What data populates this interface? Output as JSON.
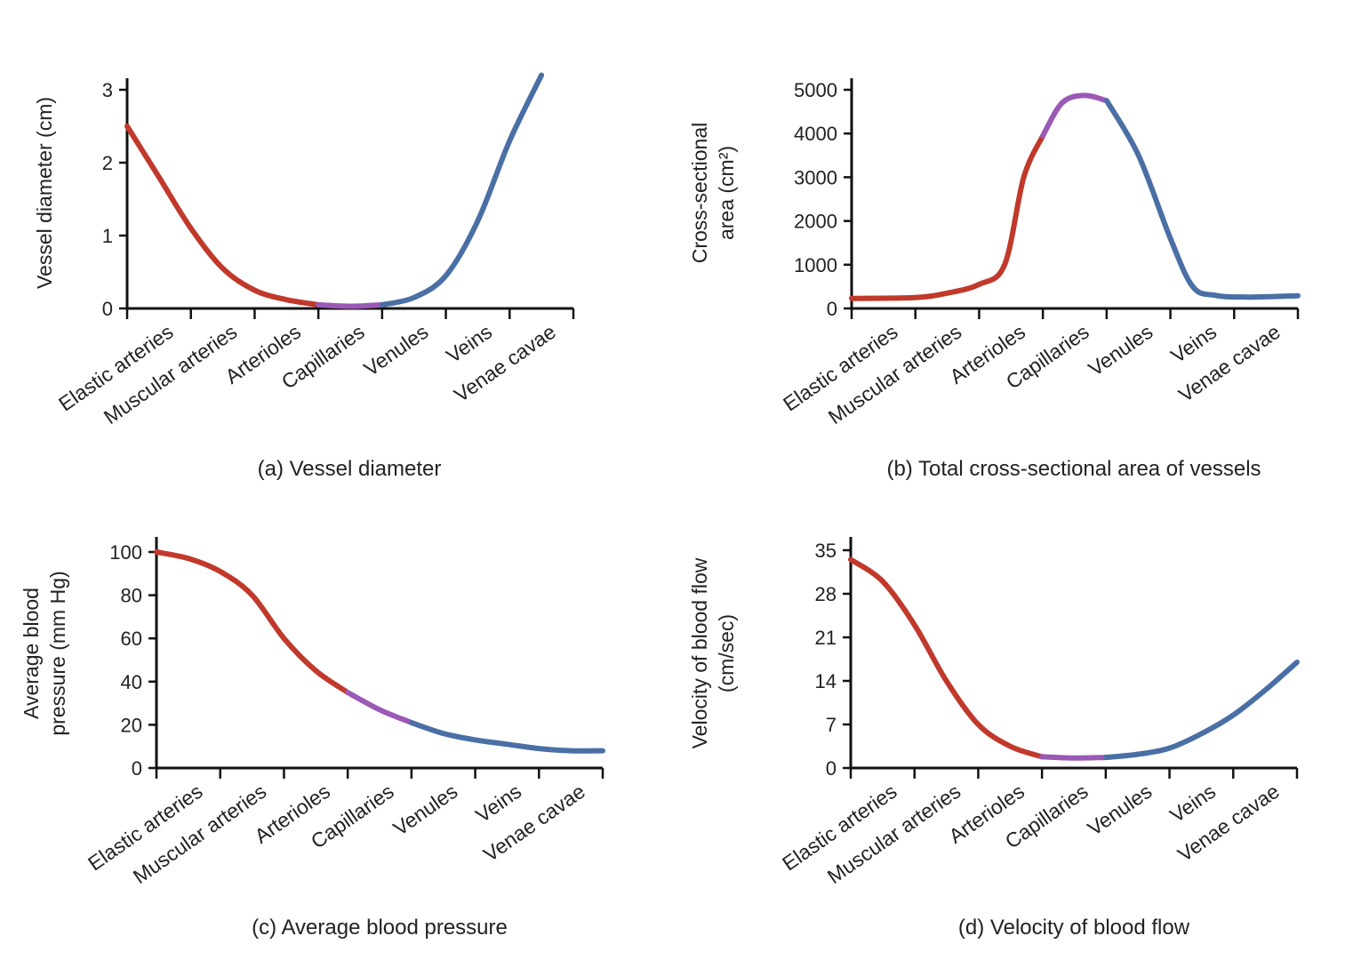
{
  "colors": {
    "artery": "#c0392b",
    "capillary": "#9b59b6",
    "vein": "#4a6fa5",
    "axis": "#111111"
  },
  "chart_data": [
    {
      "id": "a",
      "type": "line",
      "caption": "(a) Vessel diameter",
      "ylabel": [
        "Vessel diameter (cm)"
      ],
      "ylim": [
        0,
        3.2
      ],
      "yticks": [
        0,
        1,
        2,
        3
      ],
      "categories": [
        "Elastic arteries",
        "Muscular arteries",
        "Arterioles",
        "Capillaries",
        "Venules",
        "Veins",
        "Venae cavae"
      ],
      "grid": false,
      "series": [
        {
          "segment": "artery",
          "points": [
            [
              0,
              2.5
            ],
            [
              0.5,
              1.8
            ],
            [
              1,
              1.1
            ],
            [
              1.5,
              0.55
            ],
            [
              2,
              0.25
            ],
            [
              2.5,
              0.12
            ],
            [
              3,
              0.05
            ]
          ]
        },
        {
          "segment": "capillary",
          "points": [
            [
              3,
              0.05
            ],
            [
              3.5,
              0.03
            ],
            [
              4,
              0.05
            ]
          ]
        },
        {
          "segment": "vein",
          "points": [
            [
              4,
              0.05
            ],
            [
              4.5,
              0.15
            ],
            [
              5,
              0.45
            ],
            [
              5.5,
              1.2
            ],
            [
              6,
              2.3
            ],
            [
              6.5,
              3.2
            ]
          ]
        }
      ]
    },
    {
      "id": "b",
      "type": "line",
      "caption": "(b) Total cross-sectional area of vessels",
      "ylabel": [
        "Cross-sectional",
        "area (cm²)"
      ],
      "ylim": [
        0,
        5200
      ],
      "yticks": [
        0,
        1000,
        2000,
        3000,
        4000,
        5000
      ],
      "categories": [
        "Elastic arteries",
        "Muscular arteries",
        "Arterioles",
        "Capillaries",
        "Venules",
        "Veins",
        "Venae cavae"
      ],
      "grid": false,
      "series": [
        {
          "segment": "artery",
          "points": [
            [
              0,
              230
            ],
            [
              1,
              250
            ],
            [
              1.5,
              350
            ],
            [
              2,
              550
            ],
            [
              2.4,
              1000
            ],
            [
              2.7,
              3000
            ],
            [
              3,
              3950
            ]
          ]
        },
        {
          "segment": "capillary",
          "points": [
            [
              3,
              3950
            ],
            [
              3.3,
              4700
            ],
            [
              3.65,
              4870
            ],
            [
              4,
              4750
            ]
          ]
        },
        {
          "segment": "vein",
          "points": [
            [
              4,
              4750
            ],
            [
              4.5,
              3500
            ],
            [
              5,
              1600
            ],
            [
              5.35,
              500
            ],
            [
              5.7,
              300
            ],
            [
              6.2,
              260
            ],
            [
              7,
              290
            ]
          ]
        }
      ]
    },
    {
      "id": "c",
      "type": "line",
      "caption": "(c) Average blood pressure",
      "ylabel": [
        "Average blood",
        "pressure (mm Hg)"
      ],
      "ylim": [
        0,
        107
      ],
      "yticks": [
        0,
        20,
        40,
        60,
        80,
        100
      ],
      "categories": [
        "Elastic arteries",
        "Muscular arteries",
        "Arterioles",
        "Capillaries",
        "Venules",
        "Veins",
        "Venae cavae"
      ],
      "grid": false,
      "series": [
        {
          "segment": "artery",
          "points": [
            [
              0,
              100
            ],
            [
              0.5,
              97
            ],
            [
              1,
              91
            ],
            [
              1.5,
              80
            ],
            [
              2,
              60
            ],
            [
              2.5,
              45
            ],
            [
              3,
              35
            ]
          ]
        },
        {
          "segment": "capillary",
          "points": [
            [
              3,
              35
            ],
            [
              3.5,
              27
            ],
            [
              4,
              21
            ]
          ]
        },
        {
          "segment": "vein",
          "points": [
            [
              4,
              21
            ],
            [
              4.5,
              16
            ],
            [
              5,
              13
            ],
            [
              5.5,
              11
            ],
            [
              6,
              9
            ],
            [
              6.5,
              8
            ],
            [
              7,
              8
            ]
          ]
        }
      ]
    },
    {
      "id": "d",
      "type": "line",
      "caption": "(d) Velocity of blood flow",
      "ylabel": [
        "Velocity of blood flow",
        "(cm/sec)"
      ],
      "ylim": [
        0,
        35
      ],
      "yticks": [
        0,
        7,
        14,
        21,
        28,
        35
      ],
      "categories": [
        "Elastic arteries",
        "Muscular arteries",
        "Arterioles",
        "Capillaries",
        "Venules",
        "Veins",
        "Venae cavae"
      ],
      "grid": false,
      "series": [
        {
          "segment": "artery",
          "points": [
            [
              0,
              33.5
            ],
            [
              0.5,
              30
            ],
            [
              1,
              23
            ],
            [
              1.5,
              14
            ],
            [
              2,
              7
            ],
            [
              2.5,
              3.5
            ],
            [
              3,
              1.8
            ]
          ]
        },
        {
          "segment": "capillary",
          "points": [
            [
              3,
              1.8
            ],
            [
              3.5,
              1.6
            ],
            [
              4,
              1.7
            ]
          ]
        },
        {
          "segment": "vein",
          "points": [
            [
              4,
              1.7
            ],
            [
              4.5,
              2.2
            ],
            [
              5,
              3.2
            ],
            [
              5.5,
              5.5
            ],
            [
              6,
              8.5
            ],
            [
              6.5,
              12.5
            ],
            [
              7,
              17
            ]
          ]
        }
      ]
    }
  ]
}
